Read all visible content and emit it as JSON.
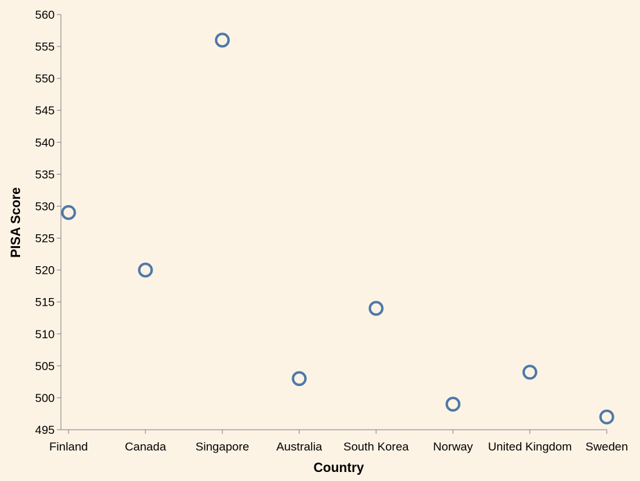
{
  "colors": {
    "background": "#fdf3e5",
    "point_stroke": "#4c78a8",
    "axis": "#888888",
    "text": "#000000"
  },
  "chart_data": {
    "type": "scatter",
    "xlabel": "Country",
    "ylabel": "PISA Score",
    "categories": [
      "Finland",
      "Canada",
      "Singapore",
      "Australia",
      "South Korea",
      "Norway",
      "United Kingdom",
      "Sweden"
    ],
    "values": [
      529,
      520,
      556,
      503,
      514,
      499,
      504,
      497
    ],
    "ylim": [
      495,
      560
    ],
    "yticks": [
      495,
      500,
      505,
      510,
      515,
      520,
      525,
      530,
      535,
      540,
      545,
      550,
      555,
      560
    ],
    "grid": false,
    "marker": "open-circle",
    "legend": "none"
  }
}
